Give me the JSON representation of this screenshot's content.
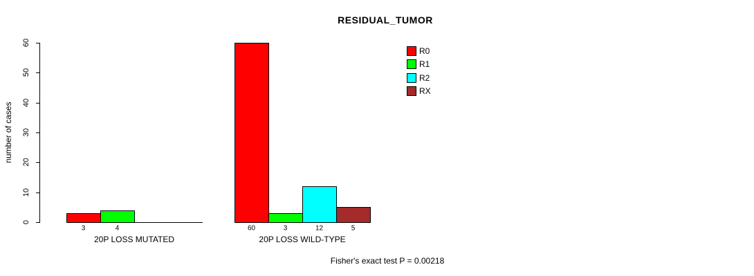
{
  "chart_data": {
    "type": "bar",
    "title": "RESIDUAL_TUMOR",
    "xlabel": "",
    "ylabel": "number of cases",
    "ylim": [
      0,
      60
    ],
    "yticks": [
      0,
      10,
      20,
      30,
      40,
      50,
      60
    ],
    "grid": false,
    "legend_position": "top-right",
    "categories": [
      "20P LOSS MUTATED",
      "20P LOSS WILD-TYPE"
    ],
    "series": [
      {
        "name": "R0",
        "color": "#FF0000",
        "values": [
          3,
          60
        ]
      },
      {
        "name": "R1",
        "color": "#00FF00",
        "values": [
          4,
          3
        ]
      },
      {
        "name": "R2",
        "color": "#00FFFF",
        "values": [
          0,
          12
        ]
      },
      {
        "name": "RX",
        "color": "#A52A2A",
        "values": [
          0,
          5
        ]
      }
    ],
    "annotation": "Fisher's exact test P = 0.00218"
  }
}
